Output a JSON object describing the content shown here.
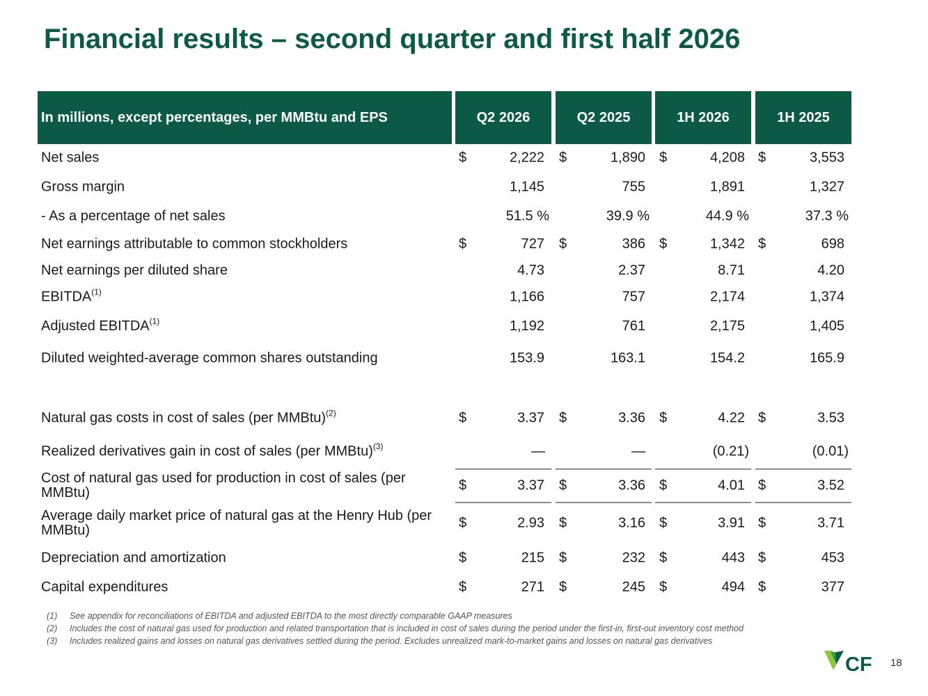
{
  "title": "Financial results – second quarter and first half 2026",
  "header": {
    "label": "In millions, except percentages, per MMBtu and EPS",
    "cols": [
      "Q2 2026",
      "Q2 2025",
      "1H 2026",
      "1H 2025"
    ]
  },
  "rows": [
    {
      "label": "Net sales",
      "sup": "",
      "dollar": [
        true,
        true,
        true,
        true
      ],
      "values": [
        "2,222",
        "1,890",
        "4,208",
        "3,553"
      ]
    },
    {
      "label": "Gross margin",
      "sup": "",
      "dollar": [
        false,
        false,
        false,
        false
      ],
      "values": [
        "1,145",
        "755",
        "1,891",
        "1,327"
      ]
    },
    {
      "label": " - As a percentage of net sales",
      "sup": "",
      "dollar": [
        false,
        false,
        false,
        false
      ],
      "values": [
        "51.5 %",
        "39.9 %",
        "44.9 %",
        "37.3 %"
      ],
      "pct": true
    },
    {
      "label": "Net earnings attributable to common stockholders",
      "sup": "",
      "dollar": [
        true,
        true,
        true,
        true
      ],
      "values": [
        "727",
        "386",
        "1,342",
        "698"
      ]
    },
    {
      "label": "Net earnings per diluted share",
      "sup": "",
      "dollar": [
        false,
        false,
        false,
        false
      ],
      "values": [
        "4.73",
        "2.37",
        "8.71",
        "4.20"
      ]
    },
    {
      "label": "EBITDA",
      "sup": "(1)",
      "dollar": [
        false,
        false,
        false,
        false
      ],
      "values": [
        "1,166",
        "757",
        "2,174",
        "1,374"
      ]
    },
    {
      "label": "Adjusted EBITDA",
      "sup": "(1)",
      "dollar": [
        false,
        false,
        false,
        false
      ],
      "values": [
        "1,192",
        "761",
        "2,175",
        "1,405"
      ]
    },
    {
      "label": "Diluted weighted-average common shares outstanding",
      "sup": "",
      "dollar": [
        false,
        false,
        false,
        false
      ],
      "values": [
        "153.9",
        "163.1",
        "154.2",
        "165.9"
      ]
    },
    {
      "label": "Natural gas costs in cost of sales (per MMBtu)",
      "sup": "(2)",
      "dollar": [
        true,
        true,
        true,
        true
      ],
      "values": [
        "3.37",
        "3.36",
        "4.22",
        "3.53"
      ]
    },
    {
      "label": "Realized derivatives gain in cost of sales (per MMBtu)",
      "sup": "(3)",
      "dollar": [
        false,
        false,
        false,
        false
      ],
      "values": [
        "—",
        "—",
        "(0.21)",
        "(0.01)"
      ],
      "paren": true
    },
    {
      "label": "Cost of natural gas used for production in cost of sales (per MMBtu)",
      "sup": "",
      "dollar": [
        true,
        true,
        true,
        true
      ],
      "values": [
        "3.37",
        "3.36",
        "4.01",
        "3.52"
      ],
      "two": true
    },
    {
      "label": "Average daily market price of natural gas at the Henry Hub (per MMBtu)",
      "sup": "",
      "dollar": [
        true,
        true,
        true,
        true
      ],
      "values": [
        "2.93",
        "3.16",
        "3.91",
        "3.71"
      ],
      "two": true
    },
    {
      "label": "Depreciation and amortization",
      "sup": "",
      "dollar": [
        true,
        true,
        true,
        true
      ],
      "values": [
        "215",
        "232",
        "443",
        "453"
      ]
    },
    {
      "label": "Capital expenditures",
      "sup": "",
      "dollar": [
        true,
        true,
        true,
        true
      ],
      "values": [
        "271",
        "245",
        "494",
        "377"
      ]
    }
  ],
  "currency_symbol": "$",
  "footnotes": [
    {
      "num": "(1)",
      "text": "See appendix for reconciliations of EBITDA and adjusted EBITDA to the most directly comparable GAAP measures"
    },
    {
      "num": "(2)",
      "text": "Includes the cost of natural gas used for production and related transportation that is included in cost of sales during the period under the first-in, first-out inventory cost method"
    },
    {
      "num": "(3)",
      "text": "Includes realized gains and losses on natural gas derivatives settled during the period. Excludes unrealized mark-to-market gains and losses on natural gas derivatives"
    }
  ],
  "logo_text": "CF",
  "page_number": "18",
  "colors": {
    "brand_green": "#0b5a43",
    "logo_light_green": "#8dc63f"
  }
}
